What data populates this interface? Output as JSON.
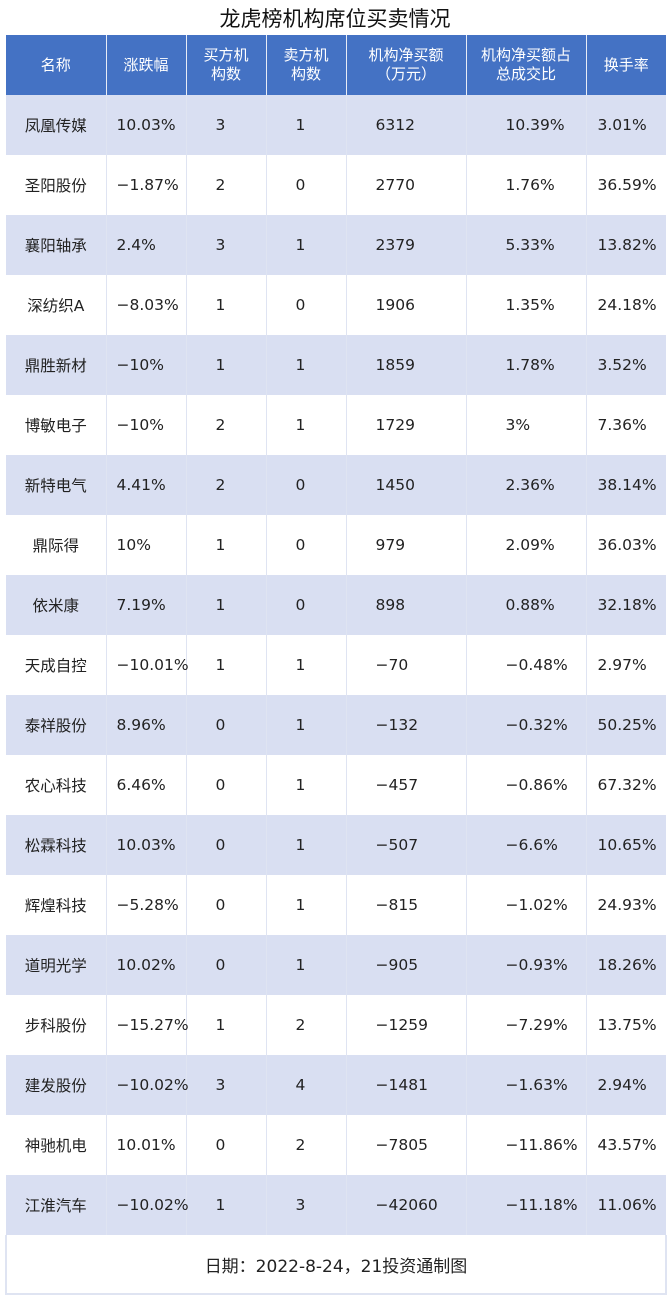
{
  "title": "龙虎榜机构席位买卖情况",
  "table": {
    "headers": [
      "名称",
      "涨跌幅",
      "买方机\n构数",
      "卖方机\n构数",
      "机构净买额\n（万元）",
      "机构净买额占\n总成交比",
      "换手率"
    ],
    "rows": [
      [
        "凤凰传媒",
        "10.03%",
        "3",
        "1",
        "6312",
        "10.39%",
        "3.01%"
      ],
      [
        "圣阳股份",
        "−1.87%",
        "2",
        "0",
        "2770",
        "1.76%",
        "36.59%"
      ],
      [
        "襄阳轴承",
        "2.4%",
        "3",
        "1",
        "2379",
        "5.33%",
        "13.82%"
      ],
      [
        "深纺织A",
        "−8.03%",
        "1",
        "0",
        "1906",
        "1.35%",
        "24.18%"
      ],
      [
        "鼎胜新材",
        "−10%",
        "1",
        "1",
        "1859",
        "1.78%",
        "3.52%"
      ],
      [
        "博敏电子",
        "−10%",
        "2",
        "1",
        "1729",
        "3%",
        "7.36%"
      ],
      [
        "新特电气",
        "4.41%",
        "2",
        "0",
        "1450",
        "2.36%",
        "38.14%"
      ],
      [
        "鼎际得",
        "10%",
        "1",
        "0",
        "979",
        "2.09%",
        "36.03%"
      ],
      [
        "依米康",
        "7.19%",
        "1",
        "0",
        "898",
        "0.88%",
        "32.18%"
      ],
      [
        "天成自控",
        "−10.01%",
        "1",
        "1",
        "−70",
        "−0.48%",
        "2.97%"
      ],
      [
        "泰祥股份",
        "8.96%",
        "0",
        "1",
        "−132",
        "−0.32%",
        "50.25%"
      ],
      [
        "农心科技",
        "6.46%",
        "0",
        "1",
        "−457",
        "−0.86%",
        "67.32%"
      ],
      [
        "松霖科技",
        "10.03%",
        "0",
        "1",
        "−507",
        "−6.6%",
        "10.65%"
      ],
      [
        "辉煌科技",
        "−5.28%",
        "0",
        "1",
        "−815",
        "−1.02%",
        "24.93%"
      ],
      [
        "道明光学",
        "10.02%",
        "0",
        "1",
        "−905",
        "−0.93%",
        "18.26%"
      ],
      [
        "步科股份",
        "−15.27%",
        "1",
        "2",
        "−1259",
        "−7.29%",
        "13.75%"
      ],
      [
        "建发股份",
        "−10.02%",
        "3",
        "4",
        "−1481",
        "−1.63%",
        "2.94%"
      ],
      [
        "神驰机电",
        "10.01%",
        "0",
        "2",
        "−7805",
        "−11.86%",
        "43.57%"
      ],
      [
        "江淮汽车",
        "−10.02%",
        "1",
        "3",
        "−42060",
        "−11.18%",
        "11.06%"
      ]
    ]
  },
  "footer": "日期：2022-8-24，21投资通制图",
  "colors": {
    "header_bg": "#4472c4",
    "stripe": "#d9dff2"
  }
}
